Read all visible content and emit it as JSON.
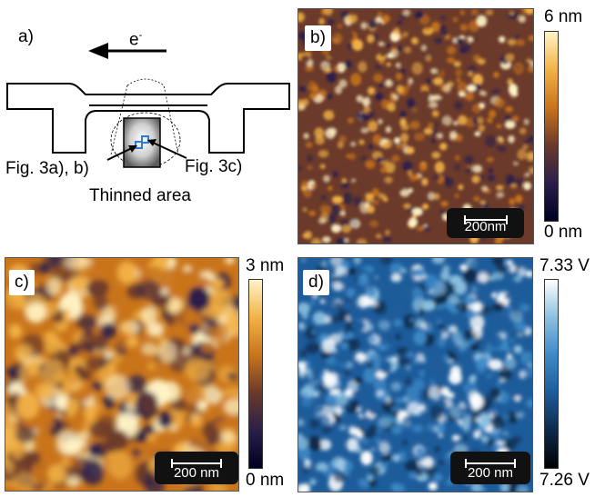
{
  "panels": {
    "a": {
      "label": "a)",
      "electron_label": "e",
      "electron_sup": "-",
      "left_callout": "Fig. 3a), b)",
      "right_callout": "Fig. 3c)",
      "area_caption": "Thinned area"
    },
    "b": {
      "label": "b)",
      "scalebar": "200nm",
      "colorbar_max": "6 nm",
      "colorbar_min": "0 nm",
      "colormap": [
        "#000020",
        "#2a1f4a",
        "#6b3a2a",
        "#c9741a",
        "#f2b246",
        "#fff4c8"
      ]
    },
    "c": {
      "label": "c)",
      "scalebar": "200 nm",
      "colorbar_max": "3 nm",
      "colorbar_min": "0 nm",
      "colormap": [
        "#000020",
        "#2a1f4a",
        "#6b3a2a",
        "#c9741a",
        "#f2b246",
        "#fff4c8"
      ]
    },
    "d": {
      "label": "d)",
      "scalebar": "200 nm",
      "colorbar_max": "7.33 V",
      "colorbar_min": "7.26 V",
      "colormap": [
        "#000000",
        "#0d2a4a",
        "#1d5c9a",
        "#3d8ac8",
        "#8cc0e0",
        "#ffffff"
      ]
    }
  }
}
